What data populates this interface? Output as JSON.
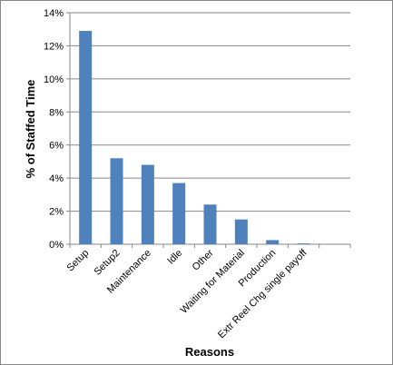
{
  "chart_data": {
    "type": "bar",
    "x_label": "Reasons",
    "y_label": "% of Staffed Time",
    "categories": [
      "Setup",
      "Setup2",
      "Maintenance",
      "Idle",
      "Other",
      "Waiting for Material",
      "Production",
      "Extr Reel Chg single payoff",
      null
    ],
    "values": [
      12.9,
      5.2,
      4.8,
      3.7,
      2.4,
      1.5,
      0.25,
      0.05,
      0
    ],
    "color": "#4f81bd",
    "ylim": [
      0,
      14
    ],
    "yticks": [
      {
        "value": 0,
        "label": "0%"
      },
      {
        "value": 2,
        "label": "2%"
      },
      {
        "value": 4,
        "label": "4%"
      },
      {
        "value": 6,
        "label": "6%"
      },
      {
        "value": 8,
        "label": "8%"
      },
      {
        "value": 10,
        "label": "10%"
      },
      {
        "value": 12,
        "label": "12%"
      },
      {
        "value": 14,
        "label": "14%"
      }
    ],
    "grid": true
  }
}
